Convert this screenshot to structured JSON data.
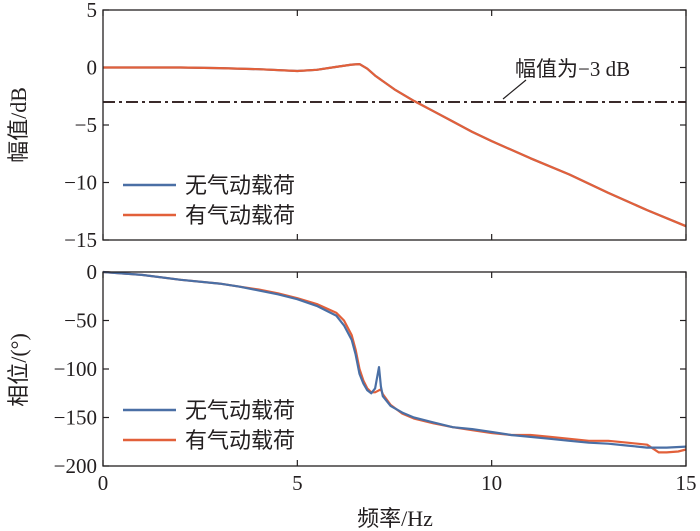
{
  "chart_data": [
    {
      "type": "line",
      "title": "",
      "xlabel": "",
      "ylabel": "幅值/dB",
      "xlim": [
        0,
        15
      ],
      "ylim": [
        -15,
        5
      ],
      "yticks": [
        "5",
        "0",
        "−5",
        "−10",
        "−15"
      ],
      "ytick_values": [
        5,
        0,
        -5,
        -10,
        -15
      ],
      "legend": "bottom-left",
      "annotation": {
        "text": "幅值为−3 dB",
        "y": -3
      },
      "series": [
        {
          "name": "无气动载荷",
          "color": "#4a6fa5",
          "x": [
            0,
            1,
            2,
            3,
            4,
            5,
            5.5,
            6,
            6.4,
            6.6,
            6.8,
            7,
            7.5,
            8,
            8.5,
            9,
            9.5,
            10,
            11,
            12,
            13,
            14,
            15
          ],
          "y": [
            0,
            0,
            0,
            -0.05,
            -0.15,
            -0.3,
            -0.2,
            0.05,
            0.25,
            0.3,
            -0.1,
            -0.7,
            -1.9,
            -2.9,
            -3.8,
            -4.7,
            -5.6,
            -6.4,
            -7.9,
            -9.3,
            -10.9,
            -12.4,
            -13.8
          ]
        },
        {
          "name": "有气动载荷",
          "color": "#e2603a",
          "x": [
            0,
            1,
            2,
            3,
            4,
            5,
            5.5,
            6,
            6.4,
            6.6,
            6.8,
            7,
            7.5,
            8,
            8.5,
            9,
            9.5,
            10,
            11,
            12,
            13,
            14,
            15
          ],
          "y": [
            0,
            0,
            0,
            -0.05,
            -0.15,
            -0.3,
            -0.2,
            0.05,
            0.25,
            0.3,
            -0.1,
            -0.7,
            -1.9,
            -2.9,
            -3.8,
            -4.7,
            -5.6,
            -6.4,
            -7.9,
            -9.3,
            -10.9,
            -12.4,
            -13.8
          ]
        }
      ]
    },
    {
      "type": "line",
      "title": "",
      "xlabel": "频率/Hz",
      "ylabel": "相位/(°)",
      "xlim": [
        0,
        15
      ],
      "ylim": [
        -200,
        0
      ],
      "xticks": [
        "0",
        "5",
        "10",
        "15"
      ],
      "xtick_values": [
        0,
        5,
        10,
        15
      ],
      "yticks": [
        "0",
        "−50",
        "−100",
        "−150",
        "−200"
      ],
      "ytick_values": [
        0,
        -50,
        -100,
        -150,
        -200
      ],
      "legend": "bottom-left",
      "series": [
        {
          "name": "无气动载荷",
          "color": "#4a6fa5",
          "x": [
            0,
            1,
            2,
            3,
            3.5,
            4,
            4.5,
            5,
            5.5,
            6,
            6.2,
            6.4,
            6.5,
            6.6,
            6.7,
            6.8,
            6.9,
            7.0,
            7.1,
            7.15,
            7.2,
            7.4,
            7.7,
            8,
            8.5,
            9,
            9.5,
            10,
            10.5,
            11,
            11.5,
            12,
            12.5,
            13,
            13.5,
            14,
            14.5,
            15
          ],
          "y": [
            0,
            -3,
            -8,
            -12,
            -15,
            -19,
            -23,
            -28,
            -35,
            -45,
            -55,
            -70,
            -85,
            -105,
            -115,
            -122,
            -125,
            -120,
            -98,
            -118,
            -128,
            -138,
            -145,
            -150,
            -155,
            -160,
            -162,
            -165,
            -168,
            -170,
            -172,
            -174,
            -176,
            -177,
            -179,
            -181,
            -181,
            -180
          ]
        },
        {
          "name": "有气动载荷",
          "color": "#e2603a",
          "x": [
            0,
            1,
            2,
            3,
            3.5,
            4,
            4.5,
            5,
            5.5,
            6,
            6.2,
            6.4,
            6.5,
            6.6,
            6.7,
            6.8,
            6.9,
            7.0,
            7.1,
            7.15,
            7.2,
            7.4,
            7.7,
            8,
            8.5,
            9,
            9.5,
            10,
            10.5,
            11,
            11.5,
            12,
            12.5,
            13,
            13.5,
            14,
            14.3,
            14.5,
            14.8,
            15
          ],
          "y": [
            0,
            -3,
            -8,
            -12,
            -15,
            -18,
            -22,
            -27,
            -33,
            -42,
            -50,
            -65,
            -80,
            -100,
            -112,
            -120,
            -124,
            -124,
            -122,
            -121,
            -126,
            -137,
            -146,
            -151,
            -156,
            -160,
            -163,
            -166,
            -168,
            -168,
            -170,
            -172,
            -174,
            -174,
            -176,
            -178,
            -186,
            -186,
            -185,
            -183
          ]
        }
      ]
    }
  ]
}
